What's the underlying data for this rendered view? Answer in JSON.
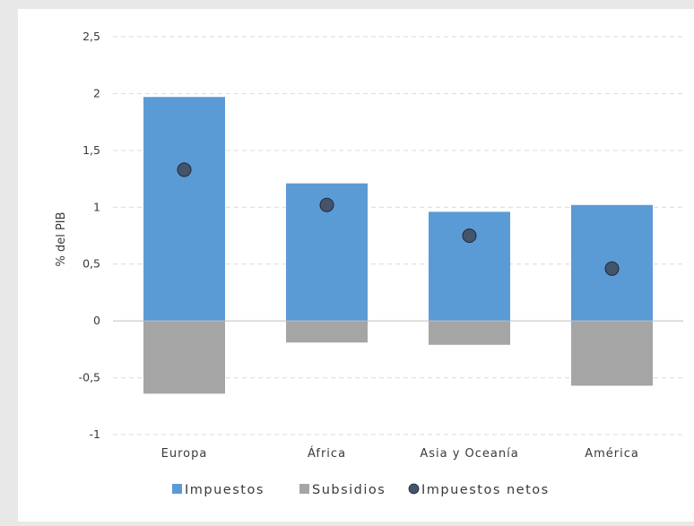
{
  "chart_data": {
    "type": "bar",
    "stacked": true,
    "title": "",
    "xlabel": "",
    "ylabel": "% del PIB",
    "ylim": [
      -1,
      2.5
    ],
    "yticks": [
      -1,
      -0.5,
      0,
      0.5,
      1,
      1.5,
      2,
      2.5
    ],
    "ytick_labels": [
      "-1",
      "-0,5",
      "0",
      "0,5",
      "1",
      "1,5",
      "2",
      "2,5"
    ],
    "categories": [
      "Europa",
      "África",
      "Asia y Oceanía",
      "América"
    ],
    "grid": true,
    "legend_position": "bottom",
    "series": [
      {
        "name": "Impuestos",
        "kind": "bar",
        "color": "#5b9bd5",
        "values": [
          1.97,
          1.21,
          0.96,
          1.02
        ]
      },
      {
        "name": "Subsidios",
        "kind": "bar",
        "color": "#a5a5a5",
        "values": [
          -0.64,
          -0.19,
          -0.21,
          -0.57
        ]
      },
      {
        "name": "Impuestos netos",
        "kind": "marker",
        "color": "#44546a",
        "values": [
          1.33,
          1.02,
          0.75,
          0.46
        ]
      }
    ]
  }
}
